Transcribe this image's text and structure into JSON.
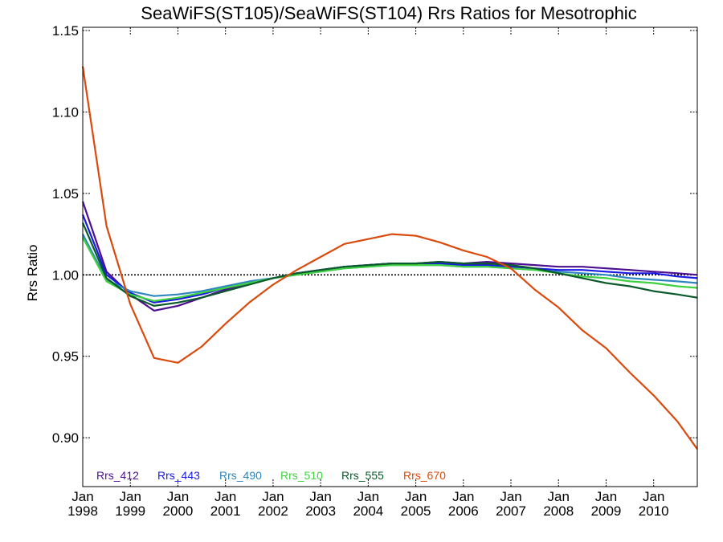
{
  "chart_data": {
    "type": "line",
    "title": "SeaWiFS(ST105)/SeaWiFS(ST104)  Rrs Ratios for Mesotrophic",
    "xlabel": "",
    "ylabel": "Rrs Ratio",
    "xlim": [
      "1998-01",
      "2010-12"
    ],
    "ylim": [
      0.87,
      1.152
    ],
    "x_ticks": [
      {
        "date": "1998-01",
        "label_top": "Jan",
        "label_bottom": "1998"
      },
      {
        "date": "1999-01",
        "label_top": "Jan",
        "label_bottom": "1999"
      },
      {
        "date": "2000-01",
        "label_top": "Jan",
        "label_bottom": "2000"
      },
      {
        "date": "2001-01",
        "label_top": "Jan",
        "label_bottom": "2001"
      },
      {
        "date": "2002-01",
        "label_top": "Jan",
        "label_bottom": "2002"
      },
      {
        "date": "2003-01",
        "label_top": "Jan",
        "label_bottom": "2003"
      },
      {
        "date": "2004-01",
        "label_top": "Jan",
        "label_bottom": "2004"
      },
      {
        "date": "2005-01",
        "label_top": "Jan",
        "label_bottom": "2005"
      },
      {
        "date": "2006-01",
        "label_top": "Jan",
        "label_bottom": "2006"
      },
      {
        "date": "2007-01",
        "label_top": "Jan",
        "label_bottom": "2007"
      },
      {
        "date": "2008-01",
        "label_top": "Jan",
        "label_bottom": "2008"
      },
      {
        "date": "2009-01",
        "label_top": "Jan",
        "label_bottom": "2009"
      },
      {
        "date": "2010-01",
        "label_top": "Jan",
        "label_bottom": "2010"
      }
    ],
    "y_ticks": [
      {
        "value": 0.9,
        "label": "0.90"
      },
      {
        "value": 0.95,
        "label": "0.95"
      },
      {
        "value": 1.0,
        "label": "1.00"
      },
      {
        "value": 1.05,
        "label": "1.05"
      },
      {
        "value": 1.1,
        "label": "1.10"
      },
      {
        "value": 1.15,
        "label": "1.15"
      }
    ],
    "reference_line": {
      "value": 1.0,
      "style": "dotted"
    },
    "legend_placement": "bottom-left",
    "x": [
      "1998-01",
      "1998-07",
      "1999-01",
      "1999-07",
      "2000-01",
      "2000-07",
      "2001-01",
      "2001-07",
      "2002-01",
      "2002-07",
      "2003-01",
      "2003-07",
      "2004-01",
      "2004-07",
      "2005-01",
      "2005-07",
      "2006-01",
      "2006-07",
      "2007-01",
      "2007-07",
      "2008-01",
      "2008-07",
      "2009-01",
      "2009-07",
      "2010-01",
      "2010-07",
      "2010-12"
    ],
    "series": [
      {
        "name": "Rrs_412",
        "color": "#4b0f8f",
        "values": [
          1.045,
          1.002,
          0.988,
          0.978,
          0.981,
          0.986,
          0.991,
          0.995,
          0.998,
          1.001,
          1.003,
          1.005,
          1.006,
          1.007,
          1.007,
          1.008,
          1.007,
          1.008,
          1.007,
          1.006,
          1.005,
          1.005,
          1.004,
          1.003,
          1.002,
          1.001,
          1.0
        ]
      },
      {
        "name": "Rrs_443",
        "color": "#1a1ae6",
        "values": [
          1.037,
          1.0,
          0.989,
          0.983,
          0.985,
          0.988,
          0.992,
          0.995,
          0.998,
          1.001,
          1.003,
          1.005,
          1.006,
          1.007,
          1.007,
          1.007,
          1.006,
          1.006,
          1.005,
          1.004,
          1.003,
          1.003,
          1.002,
          1.001,
          1.001,
          0.999,
          0.998
        ]
      },
      {
        "name": "Rrs_490",
        "color": "#2e86c1",
        "values": [
          1.025,
          0.997,
          0.99,
          0.987,
          0.988,
          0.99,
          0.993,
          0.996,
          0.998,
          1.001,
          1.002,
          1.004,
          1.005,
          1.006,
          1.006,
          1.006,
          1.005,
          1.005,
          1.004,
          1.003,
          1.002,
          1.001,
          1.0,
          0.998,
          0.997,
          0.996,
          0.995
        ]
      },
      {
        "name": "Rrs_510",
        "color": "#3fd13f",
        "values": [
          1.023,
          0.996,
          0.988,
          0.984,
          0.986,
          0.989,
          0.992,
          0.995,
          0.998,
          1.0,
          1.002,
          1.004,
          1.005,
          1.006,
          1.006,
          1.006,
          1.005,
          1.005,
          1.004,
          1.003,
          1.001,
          0.999,
          0.998,
          0.996,
          0.995,
          0.993,
          0.992
        ]
      },
      {
        "name": "Rrs_555",
        "color": "#0b5a2b",
        "values": [
          1.032,
          0.998,
          0.987,
          0.981,
          0.983,
          0.986,
          0.99,
          0.994,
          0.998,
          1.001,
          1.003,
          1.005,
          1.006,
          1.007,
          1.007,
          1.008,
          1.007,
          1.007,
          1.006,
          1.004,
          1.001,
          0.998,
          0.995,
          0.993,
          0.99,
          0.988,
          0.986
        ]
      },
      {
        "name": "Rrs_670",
        "color": "#d94a0c",
        "values": [
          1.128,
          1.03,
          0.982,
          0.949,
          0.946,
          0.956,
          0.97,
          0.983,
          0.994,
          1.003,
          1.011,
          1.019,
          1.022,
          1.025,
          1.024,
          1.02,
          1.015,
          1.011,
          1.004,
          0.991,
          0.98,
          0.966,
          0.955,
          0.94,
          0.926,
          0.91,
          0.893
        ]
      }
    ]
  }
}
